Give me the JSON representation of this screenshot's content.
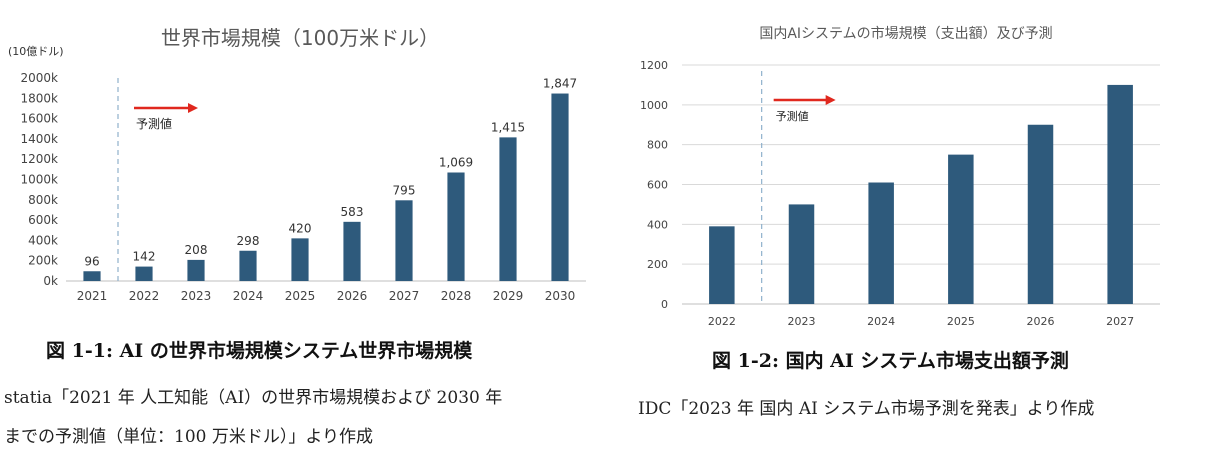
{
  "chart_data": [
    {
      "type": "bar",
      "title": "世界市場規模（100万米ドル）",
      "unit_label": "(10億ドル)",
      "categories": [
        "2021",
        "2022",
        "2023",
        "2024",
        "2025",
        "2026",
        "2027",
        "2028",
        "2029",
        "2030"
      ],
      "values": [
        96,
        142,
        208,
        298,
        420,
        583,
        795,
        1069,
        1415,
        1847
      ],
      "data_labels": [
        "96",
        "142",
        "208",
        "298",
        "420",
        "583",
        "795",
        "1,069",
        "1,415",
        "1,847"
      ],
      "ylim": [
        0,
        2000
      ],
      "yticks": [
        "0k",
        "200k",
        "400k",
        "600k",
        "800k",
        "1000k",
        "1200k",
        "1400k",
        "1600k",
        "1800k",
        "2000k"
      ],
      "forecast_label": "予測値",
      "forecast_start_after": "2021",
      "bar_color": "#2e5a7c",
      "arrow_color": "#e0281e"
    },
    {
      "type": "bar",
      "title": "国内AIシステムの市場規模（支出額）及び予測",
      "categories": [
        "2022",
        "2023",
        "2024",
        "2025",
        "2026",
        "2027"
      ],
      "values": [
        390,
        500,
        610,
        750,
        900,
        1100
      ],
      "ylim": [
        0,
        1200
      ],
      "yticks": [
        "0",
        "200",
        "400",
        "600",
        "800",
        "1000",
        "1200"
      ],
      "forecast_label": "予測値",
      "forecast_start_after": "2022",
      "bar_color": "#2e5a7c",
      "arrow_color": "#e0281e"
    }
  ],
  "captions": {
    "left": "図 1-1: AI の世界市場規模システム世界市場規模",
    "right": "図 1-2: 国内 AI システム市場支出額予測"
  },
  "sources": {
    "left_line1": "statia「2021 年 人工知能（AI）の世界市場規模および 2030 年",
    "left_line2": "までの予測値（単位：100 万米ドル）」より作成",
    "right": "IDC「2023 年 国内 AI システム市場予測を発表」より作成"
  }
}
